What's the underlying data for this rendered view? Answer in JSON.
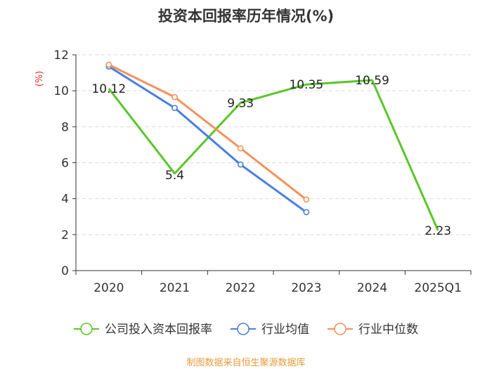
{
  "chart_data": {
    "type": "line",
    "title": "投资本回报率历年情况(%)",
    "ylabel": "(%)",
    "categories": [
      "2020",
      "2021",
      "2022",
      "2023",
      "2024",
      "2025Q1"
    ],
    "ylim": [
      0,
      12
    ],
    "yticks": [
      0,
      2,
      4,
      6,
      8,
      10,
      12
    ],
    "grid": true,
    "legend_position": "bottom",
    "series": [
      {
        "name": "公司投入资本回报率",
        "color": "#5ac62a",
        "values": [
          10.12,
          5.4,
          9.33,
          10.35,
          10.59,
          2.23
        ],
        "labels": [
          "10.12",
          "5.4",
          "9.33",
          "10.35",
          "10.59",
          "2.23"
        ],
        "show_markers": false
      },
      {
        "name": "行业均值",
        "color": "#4a7ee3",
        "values": [
          11.35,
          9.05,
          5.9,
          3.25,
          null,
          null
        ],
        "show_markers": true
      },
      {
        "name": "行业中位数",
        "color": "#f5915a",
        "values": [
          11.45,
          9.65,
          6.8,
          3.95,
          null,
          null
        ],
        "show_markers": true
      }
    ],
    "source": "制图数据来自恒生聚源数据库"
  }
}
